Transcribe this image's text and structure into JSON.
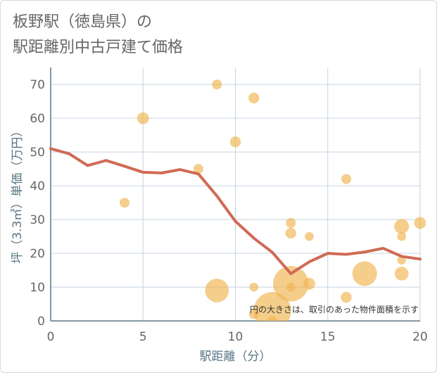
{
  "title_line1": "板野駅（徳島県）の",
  "title_line2": "駅距離別中古戸建て価格",
  "chart_data": {
    "type": "scatter",
    "xlabel": "駅距離（分）",
    "ylabel": "坪（3.3㎡）単価（万円）",
    "xlim": [
      0,
      20
    ],
    "ylim": [
      0,
      75
    ],
    "xticks": [
      0,
      5,
      10,
      15,
      20
    ],
    "yticks": [
      0,
      10,
      20,
      30,
      40,
      50,
      60,
      70
    ],
    "grid": true,
    "note": "円の大きさは、取引のあった物件面積を示す",
    "colors": {
      "bubble": "#f0b44e",
      "line": "#d06a55",
      "grid": "#c5d3e0",
      "axis": "#5a7686"
    },
    "scatter_points": [
      {
        "x": 4,
        "y": 35,
        "size": 1
      },
      {
        "x": 5,
        "y": 60,
        "size": 1.2
      },
      {
        "x": 8,
        "y": 45,
        "size": 1
      },
      {
        "x": 9,
        "y": 70,
        "size": 1
      },
      {
        "x": 9,
        "y": 9,
        "size": 2.4
      },
      {
        "x": 10,
        "y": 53,
        "size": 1.1
      },
      {
        "x": 11,
        "y": 66,
        "size": 1.1
      },
      {
        "x": 11,
        "y": 10,
        "size": 0.9
      },
      {
        "x": 11,
        "y": 2,
        "size": 1
      },
      {
        "x": 12,
        "y": 3,
        "size": 3.8
      },
      {
        "x": 12,
        "y": 0,
        "size": 1
      },
      {
        "x": 13,
        "y": 29,
        "size": 1
      },
      {
        "x": 13,
        "y": 26,
        "size": 1.1
      },
      {
        "x": 13,
        "y": 11,
        "size": 3.6
      },
      {
        "x": 13,
        "y": 10,
        "size": 0.9
      },
      {
        "x": 14,
        "y": 25,
        "size": 0.9
      },
      {
        "x": 14,
        "y": 11,
        "size": 1.2
      },
      {
        "x": 16,
        "y": 42,
        "size": 1
      },
      {
        "x": 16,
        "y": 7,
        "size": 1.1
      },
      {
        "x": 17,
        "y": 14,
        "size": 2.5
      },
      {
        "x": 19,
        "y": 28,
        "size": 1.5
      },
      {
        "x": 19,
        "y": 25,
        "size": 0.9
      },
      {
        "x": 19,
        "y": 18,
        "size": 0.9
      },
      {
        "x": 19,
        "y": 14,
        "size": 1.4
      },
      {
        "x": 20,
        "y": 29,
        "size": 1.2
      }
    ],
    "trend_line": {
      "x": [
        0,
        1,
        2,
        3,
        4,
        5,
        6,
        7,
        8,
        9,
        10,
        11,
        12,
        13,
        14,
        15,
        16,
        17,
        18,
        19,
        20
      ],
      "y": [
        51,
        49.5,
        46,
        47.5,
        45.8,
        44,
        43.8,
        44.8,
        43.5,
        37,
        29.5,
        24.5,
        20.3,
        14,
        17.5,
        20,
        19.7,
        20.4,
        21.5,
        19.1,
        18.3
      ]
    }
  }
}
